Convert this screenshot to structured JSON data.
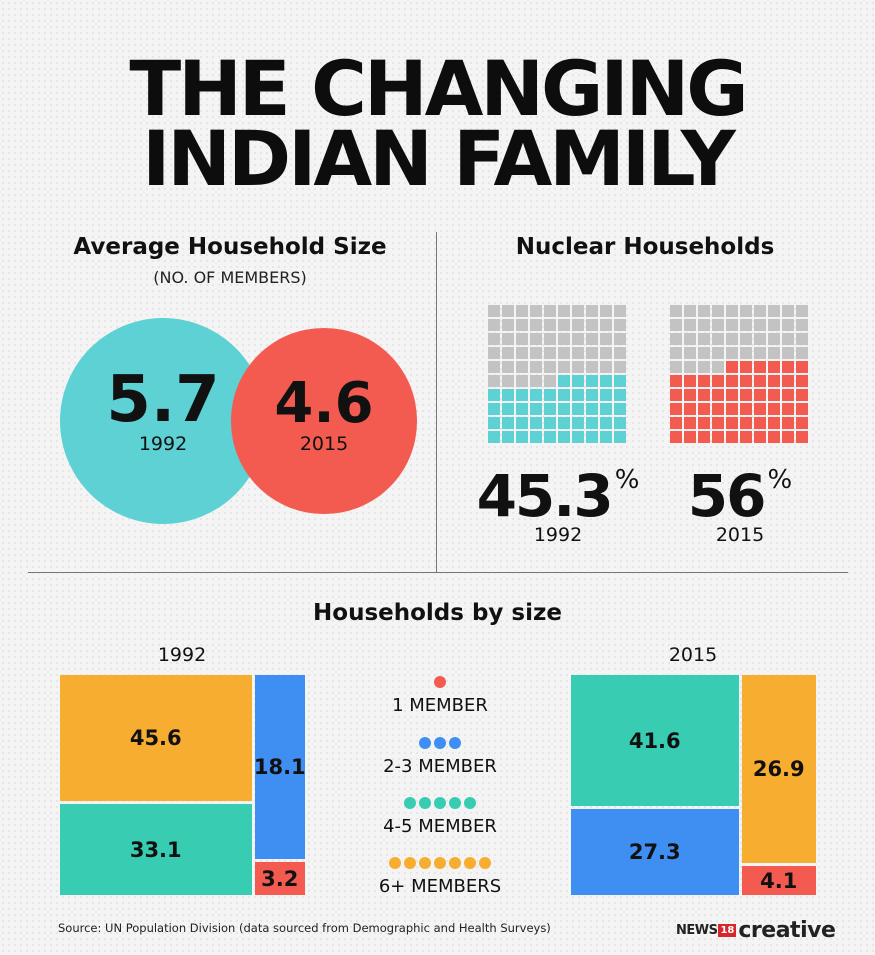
{
  "title": {
    "line1": "THE CHANGING",
    "line2": "INDIAN FAMILY"
  },
  "colors": {
    "teal": "#5ed1d4",
    "red": "#f35b50",
    "gray": "#c3c3c3",
    "orange": "#f7ad30",
    "green": "#38cdb3",
    "blue": "#3f8ef2"
  },
  "avg_household": {
    "heading": "Average Household Size",
    "subheading": "(NO. OF MEMBERS)",
    "items": [
      {
        "value": "5.7",
        "year": "1992"
      },
      {
        "value": "4.6",
        "year": "2015"
      }
    ]
  },
  "nuclear": {
    "heading": "Nuclear Households",
    "percent_sign": "%",
    "items": [
      {
        "value": "45.3",
        "year": "1992",
        "filled_cells": 45
      },
      {
        "value": "56",
        "year": "2015",
        "filled_cells": 56
      }
    ]
  },
  "households_by_size": {
    "heading": "Households by size",
    "legend": [
      {
        "label": "1 MEMBER",
        "dots": 1,
        "color_key": "red"
      },
      {
        "label": "2-3 MEMBER",
        "dots": 3,
        "color_key": "blue"
      },
      {
        "label": "4-5 MEMBER",
        "dots": 5,
        "color_key": "green"
      },
      {
        "label": "6+ MEMBERS",
        "dots": 7,
        "color_key": "orange"
      }
    ]
  },
  "chart_data": [
    {
      "type": "bubble",
      "title": "Average Household Size",
      "subtitle": "(NO. OF MEMBERS)",
      "categories": [
        "1992",
        "2015"
      ],
      "values": [
        5.7,
        4.6
      ]
    },
    {
      "type": "waffle",
      "title": "Nuclear Households",
      "categories": [
        "1992",
        "2015"
      ],
      "values": [
        45.3,
        56
      ],
      "unit": "%"
    },
    {
      "type": "treemap",
      "title": "Households by size",
      "series": [
        {
          "name": "1992",
          "categories": [
            "6+ MEMBERS",
            "4-5 MEMBER",
            "2-3 MEMBER",
            "1 MEMBER"
          ],
          "values": [
            45.6,
            33.1,
            18.1,
            3.2
          ]
        },
        {
          "name": "2015",
          "categories": [
            "4-5 MEMBER",
            "2-3 MEMBER",
            "6+ MEMBERS",
            "1 MEMBER"
          ],
          "values": [
            41.6,
            27.3,
            26.9,
            4.1
          ]
        }
      ]
    }
  ],
  "source": "Source: UN Population Division (data sourced from Demographic and Health Surveys)",
  "logo": {
    "news": "NEWS",
    "num": "18",
    "brand": "creative"
  }
}
